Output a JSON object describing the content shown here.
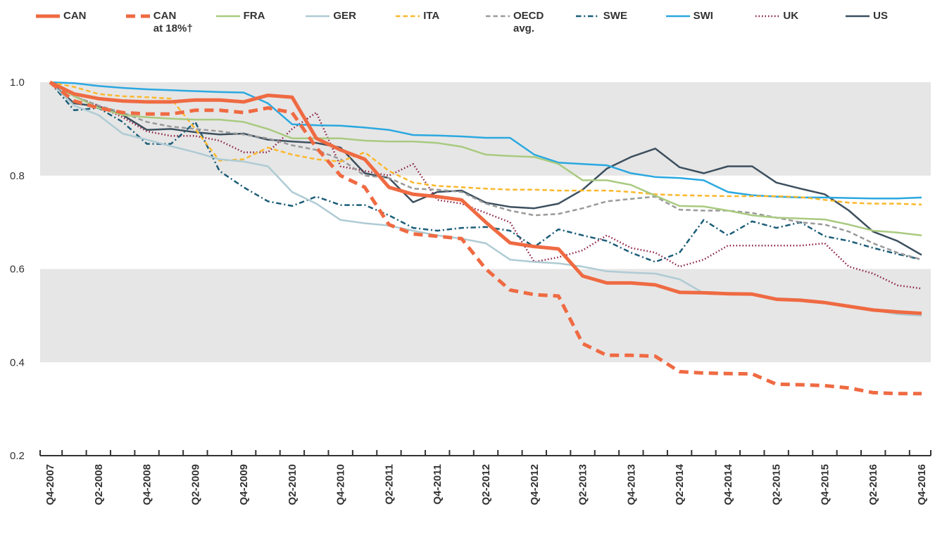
{
  "chart_data": {
    "type": "line",
    "categories": [
      "Q4-2007",
      null,
      "Q2-2008",
      null,
      "Q4-2008",
      null,
      "Q2-2009",
      null,
      "Q4-2009",
      null,
      "Q2-2010",
      null,
      "Q4-2010",
      null,
      "Q2-2011",
      null,
      "Q4-2011",
      null,
      "Q2-2012",
      null,
      "Q4-2012",
      null,
      "Q2-2013",
      null,
      "Q4-2013",
      null,
      "Q2-2014",
      null,
      "Q4-2014",
      null,
      "Q2-2015",
      null,
      "Q4-2015",
      null,
      "Q2-2016",
      null,
      "Q4-2016"
    ],
    "ylim": [
      0.2,
      1
    ],
    "yticks": [
      0.2,
      0.4,
      0.6,
      0.8,
      {
        "value": 1,
        "label": "1.0"
      }
    ],
    "bands": true,
    "series": [
      {
        "name": "CAN",
        "color": "#ef6a42",
        "dash": "solid",
        "width": 5,
        "values": [
          1.0,
          0.975,
          0.965,
          0.96,
          0.958,
          0.958,
          0.962,
          0.962,
          0.958,
          0.972,
          0.968,
          0.88,
          0.855,
          0.835,
          0.775,
          0.76,
          0.755,
          0.748,
          0.7,
          0.656,
          0.648,
          0.643,
          0.585,
          0.57,
          0.57,
          0.566,
          0.55,
          0.549,
          0.547,
          0.546,
          0.535,
          0.533,
          0.528,
          0.52,
          0.512,
          0.508,
          0.505
        ]
      },
      {
        "name": "CAN\nat 18%†",
        "color": "#ef6a42",
        "dash": "dashed",
        "width": 5,
        "values": [
          1.0,
          0.96,
          0.945,
          0.935,
          0.932,
          0.932,
          0.94,
          0.94,
          0.935,
          0.945,
          0.935,
          0.86,
          0.8,
          0.775,
          0.695,
          0.675,
          0.67,
          0.665,
          0.6,
          0.555,
          0.545,
          0.542,
          0.44,
          0.415,
          0.415,
          0.413,
          0.38,
          0.377,
          0.376,
          0.375,
          0.353,
          0.352,
          0.35,
          0.345,
          0.335,
          0.333,
          0.333
        ]
      },
      {
        "name": "FRA",
        "color": "#a9ca80",
        "dash": "solid",
        "width": 2.5,
        "values": [
          1.0,
          0.97,
          0.945,
          0.93,
          0.925,
          0.922,
          0.92,
          0.92,
          0.915,
          0.9,
          0.88,
          0.88,
          0.88,
          0.875,
          0.873,
          0.873,
          0.87,
          0.862,
          0.845,
          0.842,
          0.84,
          0.825,
          0.79,
          0.79,
          0.78,
          0.757,
          0.735,
          0.734,
          0.725,
          0.715,
          0.71,
          0.708,
          0.706,
          0.695,
          0.682,
          0.678,
          0.672
        ]
      },
      {
        "name": "GER",
        "color": "#afcbd4",
        "dash": "solid",
        "width": 2.5,
        "values": [
          1.0,
          0.95,
          0.93,
          0.89,
          0.877,
          0.863,
          0.85,
          0.835,
          0.83,
          0.82,
          0.765,
          0.74,
          0.705,
          0.698,
          0.693,
          0.682,
          0.672,
          0.665,
          0.655,
          0.62,
          0.615,
          0.612,
          0.605,
          0.595,
          0.592,
          0.59,
          0.578,
          0.548,
          0.548,
          0.545,
          0.537,
          0.535,
          0.528,
          0.52,
          0.512,
          0.503,
          0.5
        ]
      },
      {
        "name": "ITA",
        "color": "#fbb82c",
        "dash": "dashed",
        "width": 2.5,
        "values": [
          1.0,
          0.99,
          0.975,
          0.97,
          0.968,
          0.965,
          0.9,
          0.832,
          0.835,
          0.86,
          0.845,
          0.835,
          0.83,
          0.85,
          0.81,
          0.785,
          0.778,
          0.775,
          0.772,
          0.77,
          0.77,
          0.768,
          0.768,
          0.768,
          0.765,
          0.76,
          0.758,
          0.757,
          0.756,
          0.756,
          0.756,
          0.754,
          0.748,
          0.742,
          0.74,
          0.74,
          0.738
        ]
      },
      {
        "name": "OECD\navg.",
        "color": "#9a9a9a",
        "dash": "dashed",
        "width": 2.5,
        "values": [
          1.0,
          0.97,
          0.95,
          0.935,
          0.915,
          0.905,
          0.9,
          0.895,
          0.888,
          0.88,
          0.865,
          0.855,
          0.835,
          0.8,
          0.795,
          0.772,
          0.77,
          0.765,
          0.74,
          0.725,
          0.715,
          0.718,
          0.73,
          0.745,
          0.75,
          0.755,
          0.727,
          0.725,
          0.725,
          0.72,
          0.71,
          0.7,
          0.695,
          0.68,
          0.655,
          0.635,
          0.62
        ]
      },
      {
        "name": "SWE",
        "color": "#1c5d78",
        "dash": "dashdot",
        "width": 2.5,
        "values": [
          1.0,
          0.94,
          0.945,
          0.915,
          0.868,
          0.868,
          0.915,
          0.81,
          0.775,
          0.745,
          0.735,
          0.755,
          0.737,
          0.737,
          0.715,
          0.688,
          0.682,
          0.688,
          0.69,
          0.682,
          0.647,
          0.685,
          0.672,
          0.66,
          0.635,
          0.615,
          0.635,
          0.705,
          0.672,
          0.702,
          0.688,
          0.7,
          0.67,
          0.66,
          0.645,
          0.632,
          0.62
        ]
      },
      {
        "name": "SWI",
        "color": "#2aa8e0",
        "dash": "solid",
        "width": 2.5,
        "values": [
          1.0,
          0.998,
          0.992,
          0.988,
          0.985,
          0.983,
          0.981,
          0.979,
          0.978,
          0.955,
          0.91,
          0.908,
          0.907,
          0.903,
          0.898,
          0.887,
          0.886,
          0.884,
          0.881,
          0.881,
          0.845,
          0.828,
          0.825,
          0.822,
          0.805,
          0.797,
          0.795,
          0.79,
          0.765,
          0.758,
          0.755,
          0.753,
          0.753,
          0.752,
          0.751,
          0.751,
          0.753
        ]
      },
      {
        "name": "UK",
        "color": "#8a1c40",
        "dash": "dotted",
        "width": 2.5,
        "values": [
          1.0,
          0.97,
          0.95,
          0.925,
          0.895,
          0.885,
          0.885,
          0.875,
          0.85,
          0.85,
          0.9,
          0.935,
          0.82,
          0.81,
          0.8,
          0.825,
          0.748,
          0.74,
          0.72,
          0.7,
          0.615,
          0.625,
          0.64,
          0.672,
          0.645,
          0.635,
          0.605,
          0.62,
          0.65,
          0.65,
          0.65,
          0.65,
          0.655,
          0.605,
          0.59,
          0.565,
          0.558
        ]
      },
      {
        "name": "US",
        "color": "#3c4f5e",
        "dash": "solid",
        "width": 2.5,
        "values": [
          1.0,
          0.955,
          0.948,
          0.93,
          0.898,
          0.9,
          0.893,
          0.888,
          0.89,
          0.877,
          0.873,
          0.87,
          0.86,
          0.805,
          0.795,
          0.743,
          0.765,
          0.768,
          0.742,
          0.733,
          0.73,
          0.74,
          0.77,
          0.815,
          0.84,
          0.858,
          0.818,
          0.805,
          0.82,
          0.82,
          0.785,
          0.772,
          0.76,
          0.725,
          0.68,
          0.66,
          0.63
        ]
      }
    ]
  }
}
